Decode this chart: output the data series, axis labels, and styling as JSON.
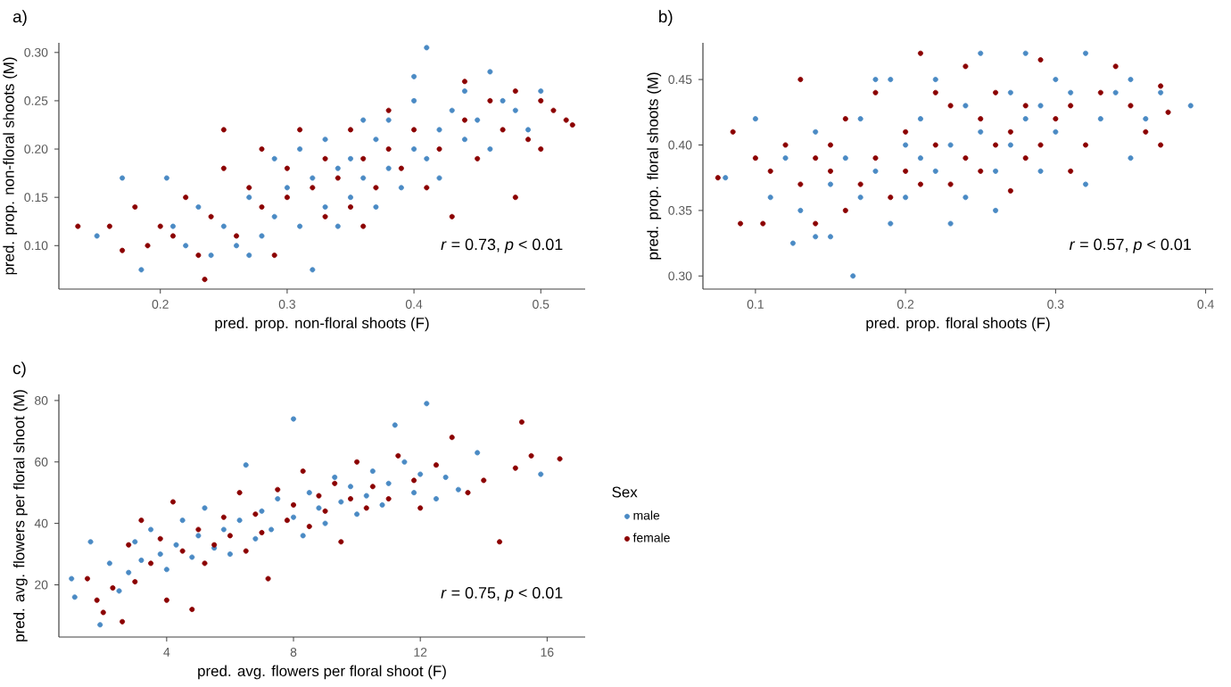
{
  "chart_data": [
    {
      "type": "scatter",
      "title": "a)",
      "xlabel": "pred. prop. non-floral shoots (F)",
      "ylabel": "pred. prop. non-floral shoots (M)",
      "xlim": [
        0.12,
        0.535
      ],
      "ylim": [
        0.055,
        0.31
      ],
      "xticks": [
        0.2,
        0.3,
        0.4,
        0.5
      ],
      "yticks": [
        {
          "value": 0.1,
          "label": "0.10"
        },
        {
          "value": 0.15,
          "label": "0.15"
        },
        {
          "value": 0.2,
          "label": "0.20"
        },
        {
          "value": 0.25,
          "label": "0.25"
        },
        {
          "value": 0.3,
          "label": "0.30"
        }
      ],
      "annotations": [
        "*r* = 0.73, *p* < 0.01"
      ],
      "series": [
        {
          "color": "#4a8ac4",
          "x": [
            0.15,
            0.17,
            0.185,
            0.205,
            0.21,
            0.22,
            0.23,
            0.24,
            0.25,
            0.26,
            0.27,
            0.28,
            0.29,
            0.29,
            0.3,
            0.31,
            0.31,
            0.32,
            0.33,
            0.33,
            0.34,
            0.35,
            0.35,
            0.36,
            0.37,
            0.37,
            0.38,
            0.38,
            0.39,
            0.4,
            0.4,
            0.41,
            0.41,
            0.42,
            0.42,
            0.43,
            0.44,
            0.44,
            0.45,
            0.46,
            0.46,
            0.47,
            0.48,
            0.49,
            0.5,
            0.32,
            0.4,
            0.34,
            0.27,
            0.36
          ],
          "values": [
            0.11,
            0.17,
            0.075,
            0.17,
            0.12,
            0.1,
            0.14,
            0.09,
            0.12,
            0.1,
            0.15,
            0.11,
            0.19,
            0.13,
            0.16,
            0.12,
            0.2,
            0.17,
            0.14,
            0.21,
            0.18,
            0.15,
            0.19,
            0.17,
            0.21,
            0.14,
            0.18,
            0.23,
            0.16,
            0.2,
            0.25,
            0.19,
            0.305,
            0.22,
            0.17,
            0.24,
            0.21,
            0.26,
            0.23,
            0.2,
            0.28,
            0.25,
            0.24,
            0.22,
            0.26,
            0.075,
            0.275,
            0.12,
            0.09,
            0.23
          ]
        },
        {
          "color": "#8b0000",
          "x": [
            0.135,
            0.16,
            0.17,
            0.18,
            0.19,
            0.2,
            0.21,
            0.22,
            0.23,
            0.235,
            0.24,
            0.25,
            0.26,
            0.27,
            0.28,
            0.28,
            0.29,
            0.3,
            0.3,
            0.31,
            0.32,
            0.33,
            0.33,
            0.34,
            0.35,
            0.35,
            0.36,
            0.37,
            0.38,
            0.38,
            0.39,
            0.4,
            0.41,
            0.42,
            0.43,
            0.44,
            0.45,
            0.46,
            0.47,
            0.48,
            0.48,
            0.49,
            0.5,
            0.51,
            0.52,
            0.525,
            0.5,
            0.36,
            0.25,
            0.44
          ],
          "values": [
            0.12,
            0.12,
            0.095,
            0.14,
            0.1,
            0.12,
            0.11,
            0.15,
            0.09,
            0.065,
            0.13,
            0.18,
            0.11,
            0.16,
            0.14,
            0.2,
            0.09,
            0.15,
            0.18,
            0.22,
            0.16,
            0.13,
            0.19,
            0.17,
            0.22,
            0.14,
            0.19,
            0.16,
            0.24,
            0.2,
            0.18,
            0.22,
            0.16,
            0.2,
            0.13,
            0.23,
            0.19,
            0.25,
            0.22,
            0.15,
            0.26,
            0.21,
            0.25,
            0.24,
            0.23,
            0.225,
            0.2,
            0.12,
            0.22,
            0.27
          ]
        }
      ]
    },
    {
      "type": "scatter",
      "title": "b)",
      "xlabel": "pred. prop. floral shoots (F)",
      "ylabel": "pred. prop. floral shoots (M)",
      "xlim": [
        0.065,
        0.405
      ],
      "ylim": [
        0.29,
        0.478
      ],
      "xticks": [
        0.1,
        0.2,
        0.3,
        0.4
      ],
      "yticks": [
        {
          "value": 0.3,
          "label": "0.30"
        },
        {
          "value": 0.35,
          "label": "0.35"
        },
        {
          "value": 0.4,
          "label": "0.40"
        },
        {
          "value": 0.45,
          "label": "0.45"
        }
      ],
      "annotations": [
        "*r* = 0.57, *p* < 0.01"
      ],
      "series": [
        {
          "color": "#4a8ac4",
          "x": [
            0.08,
            0.1,
            0.11,
            0.12,
            0.125,
            0.13,
            0.14,
            0.15,
            0.15,
            0.16,
            0.165,
            0.17,
            0.18,
            0.18,
            0.19,
            0.2,
            0.2,
            0.21,
            0.22,
            0.22,
            0.23,
            0.24,
            0.24,
            0.25,
            0.25,
            0.26,
            0.27,
            0.27,
            0.28,
            0.28,
            0.29,
            0.3,
            0.3,
            0.31,
            0.32,
            0.32,
            0.33,
            0.34,
            0.35,
            0.35,
            0.36,
            0.37,
            0.39,
            0.14,
            0.19,
            0.23,
            0.26,
            0.29,
            0.17,
            0.21
          ],
          "values": [
            0.375,
            0.42,
            0.36,
            0.39,
            0.325,
            0.35,
            0.41,
            0.37,
            0.33,
            0.39,
            0.3,
            0.36,
            0.45,
            0.38,
            0.34,
            0.4,
            0.36,
            0.42,
            0.38,
            0.45,
            0.4,
            0.36,
            0.43,
            0.47,
            0.41,
            0.38,
            0.44,
            0.4,
            0.47,
            0.42,
            0.38,
            0.45,
            0.41,
            0.44,
            0.37,
            0.47,
            0.42,
            0.44,
            0.39,
            0.45,
            0.42,
            0.44,
            0.43,
            0.33,
            0.45,
            0.34,
            0.35,
            0.43,
            0.42,
            0.39
          ]
        },
        {
          "color": "#8b0000",
          "x": [
            0.075,
            0.085,
            0.09,
            0.1,
            0.105,
            0.11,
            0.12,
            0.13,
            0.13,
            0.14,
            0.15,
            0.15,
            0.16,
            0.17,
            0.18,
            0.18,
            0.19,
            0.2,
            0.2,
            0.21,
            0.21,
            0.22,
            0.23,
            0.23,
            0.24,
            0.24,
            0.25,
            0.25,
            0.26,
            0.27,
            0.27,
            0.28,
            0.29,
            0.29,
            0.3,
            0.31,
            0.31,
            0.32,
            0.33,
            0.34,
            0.35,
            0.36,
            0.37,
            0.375,
            0.37,
            0.16,
            0.22,
            0.26,
            0.14,
            0.28
          ],
          "values": [
            0.375,
            0.41,
            0.34,
            0.39,
            0.34,
            0.38,
            0.4,
            0.37,
            0.45,
            0.34,
            0.4,
            0.38,
            0.42,
            0.37,
            0.39,
            0.44,
            0.36,
            0.41,
            0.38,
            0.47,
            0.37,
            0.4,
            0.43,
            0.37,
            0.46,
            0.39,
            0.42,
            0.38,
            0.44,
            0.41,
            0.365,
            0.43,
            0.4,
            0.465,
            0.42,
            0.38,
            0.43,
            0.4,
            0.44,
            0.46,
            0.43,
            0.41,
            0.445,
            0.425,
            0.4,
            0.35,
            0.44,
            0.4,
            0.39,
            0.39
          ]
        }
      ]
    },
    {
      "type": "scatter",
      "title": "c)",
      "xlabel": "pred. avg. flowers per floral shoot (F)",
      "ylabel": "pred. avg. flowers per floral shoot (M)",
      "xlim": [
        0.6,
        17.2
      ],
      "ylim": [
        3,
        82
      ],
      "xticks": [
        4,
        8,
        12,
        16
      ],
      "yticks": [
        20,
        40,
        60,
        80
      ],
      "legend": "right",
      "legend_title": "Sex",
      "annotations": [
        "*r* = 0.75, *p* < 0.01"
      ],
      "series": [
        {
          "name": "male",
          "color": "#4a8ac4",
          "x": [
            1.0,
            1.1,
            1.6,
            1.9,
            2.2,
            2.5,
            2.8,
            3.0,
            3.2,
            3.5,
            3.8,
            4.0,
            4.3,
            4.5,
            4.8,
            5.0,
            5.2,
            5.5,
            5.8,
            6.0,
            6.3,
            6.5,
            6.8,
            7.0,
            7.3,
            7.5,
            8.0,
            8.0,
            8.3,
            8.5,
            8.8,
            9.0,
            9.3,
            9.5,
            9.8,
            10.0,
            10.3,
            10.5,
            10.8,
            11.0,
            11.2,
            11.5,
            11.8,
            12.0,
            12.2,
            12.5,
            12.8,
            13.2,
            13.8,
            15.8
          ],
          "values": [
            22,
            16,
            34,
            7,
            27,
            18,
            24,
            34,
            28,
            38,
            30,
            25,
            33,
            41,
            29,
            36,
            45,
            32,
            38,
            30,
            41,
            59,
            35,
            44,
            38,
            48,
            74,
            42,
            36,
            50,
            45,
            40,
            55,
            47,
            52,
            43,
            49,
            57,
            46,
            53,
            72,
            60,
            50,
            56,
            79,
            48,
            55,
            51,
            63,
            56
          ]
        },
        {
          "name": "female",
          "color": "#8b0000",
          "x": [
            1.5,
            1.8,
            2.0,
            2.3,
            2.6,
            2.8,
            3.0,
            3.2,
            3.5,
            3.8,
            4.0,
            4.2,
            4.5,
            4.8,
            5.0,
            5.2,
            5.5,
            5.8,
            6.0,
            6.3,
            6.5,
            6.8,
            7.0,
            7.2,
            7.5,
            7.8,
            8.0,
            8.3,
            8.5,
            8.8,
            9.0,
            9.3,
            9.5,
            9.8,
            10.0,
            10.3,
            10.5,
            11.0,
            11.3,
            11.8,
            12.0,
            12.5,
            13.0,
            13.5,
            14.0,
            14.5,
            15.0,
            15.2,
            15.5,
            16.4
          ],
          "values": [
            22,
            15,
            11,
            19,
            8,
            33,
            21,
            41,
            27,
            35,
            15,
            47,
            31,
            12,
            38,
            27,
            33,
            42,
            36,
            50,
            31,
            43,
            37,
            22,
            51,
            41,
            46,
            57,
            39,
            49,
            44,
            53,
            34,
            48,
            60,
            45,
            52,
            48,
            62,
            54,
            45,
            59,
            68,
            50,
            54,
            34,
            58,
            73,
            62,
            61
          ]
        }
      ]
    }
  ]
}
